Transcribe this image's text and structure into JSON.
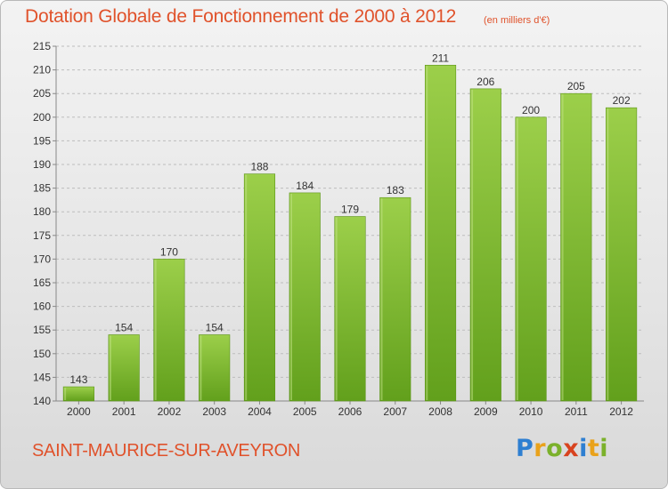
{
  "chart_data": {
    "type": "bar",
    "title": "Dotation Globale de Fonctionnement de 2000 à 2012",
    "subtitle": "(en milliers d'€)",
    "categories": [
      "2000",
      "2001",
      "2002",
      "2003",
      "2004",
      "2005",
      "2006",
      "2007",
      "2008",
      "2009",
      "2010",
      "2011",
      "2012"
    ],
    "values": [
      143,
      154,
      170,
      154,
      188,
      184,
      179,
      183,
      211,
      206,
      200,
      205,
      202
    ],
    "xlabel": "",
    "ylabel": "",
    "ylim": [
      140,
      215
    ],
    "yticks": [
      140,
      145,
      150,
      155,
      160,
      165,
      170,
      175,
      180,
      185,
      190,
      195,
      200,
      205,
      210,
      215
    ],
    "grid": "horizontal dashed",
    "bar_color_top": "#9ccf4a",
    "bar_color_bottom": "#62a01c",
    "show_value_labels": true
  },
  "commune": "SAINT-MAURICE-SUR-AVEYRON",
  "logo": {
    "letters": [
      "P",
      "r",
      "o",
      "x",
      "i",
      "t",
      "i"
    ],
    "text": "Proxiti"
  }
}
